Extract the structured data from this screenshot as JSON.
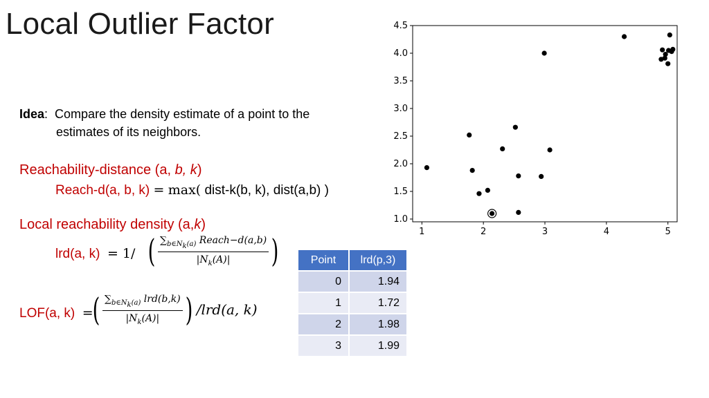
{
  "title": "Local Outlier Factor",
  "idea": {
    "label": "Idea",
    "line1": "Compare the density estimate of a point to the",
    "line2": "estimates of its neighbors."
  },
  "reachability": {
    "heading_pre": "Reachability-distance (a, ",
    "heading_b": "b, k",
    "heading_post": ")",
    "def_label": "Reach-d(a, b, k)",
    "def_eq": "=",
    "def_max": "max(",
    "def_args": " dist-k(b, k), dist(a,b) )"
  },
  "lrd": {
    "heading_pre": "Local reachability density (a,",
    "heading_k": "k",
    "heading_post": ")",
    "label": "lrd(a, k)",
    "eq": "= 1/",
    "num_sum": "∑",
    "num_sub": "b∈N",
    "num_subk": "k",
    "num_suba": "(a)",
    "num_body": "Reach−d(a,b)",
    "den": "|N",
    "den_k": "k",
    "den_post": "(A)|"
  },
  "lof": {
    "label": "LOF(a, k)",
    "eq": "=",
    "num_sum": "∑",
    "num_sub": "b∈N",
    "num_subk": "k",
    "num_suba": "(a)",
    "num_body": "lrd(b,k)",
    "den": "|N",
    "den_k": "k",
    "den_post": "(A)|",
    "tail": "/lrd(a, k)"
  },
  "table": {
    "headers": [
      "Point",
      "lrd(p,3)"
    ],
    "rows": [
      [
        "0",
        "1.94"
      ],
      [
        "1",
        "1.72"
      ],
      [
        "2",
        "1.98"
      ],
      [
        "3",
        "1.99"
      ]
    ]
  },
  "chart_data": {
    "type": "scatter",
    "xlim": [
      0.85,
      5.15
    ],
    "ylim": [
      0.95,
      4.5
    ],
    "xticks": [
      "1",
      "2",
      "3",
      "4",
      "5"
    ],
    "yticks": [
      "1.0",
      "1.5",
      "2.0",
      "2.5",
      "3.0",
      "3.5",
      "4.0",
      "4.5"
    ],
    "grid": false,
    "points": [
      {
        "x": 1.08,
        "y": 1.93
      },
      {
        "x": 1.77,
        "y": 2.52
      },
      {
        "x": 1.82,
        "y": 1.88
      },
      {
        "x": 1.93,
        "y": 1.46
      },
      {
        "x": 2.07,
        "y": 1.52
      },
      {
        "x": 2.31,
        "y": 2.27
      },
      {
        "x": 2.52,
        "y": 2.66
      },
      {
        "x": 2.57,
        "y": 1.78
      },
      {
        "x": 2.57,
        "y": 1.12
      },
      {
        "x": 2.94,
        "y": 1.77
      },
      {
        "x": 3.08,
        "y": 2.25
      },
      {
        "x": 2.99,
        "y": 4.0
      },
      {
        "x": 4.29,
        "y": 4.3
      },
      {
        "x": 5.03,
        "y": 4.33
      },
      {
        "x": 4.91,
        "y": 4.06
      },
      {
        "x": 5.01,
        "y": 4.05
      },
      {
        "x": 5.08,
        "y": 4.07
      },
      {
        "x": 4.96,
        "y": 3.98
      },
      {
        "x": 5.06,
        "y": 4.03
      },
      {
        "x": 4.89,
        "y": 3.89
      },
      {
        "x": 4.95,
        "y": 3.91
      },
      {
        "x": 5.0,
        "y": 3.81
      }
    ],
    "highlight": {
      "x": 2.14,
      "y": 1.1
    }
  }
}
